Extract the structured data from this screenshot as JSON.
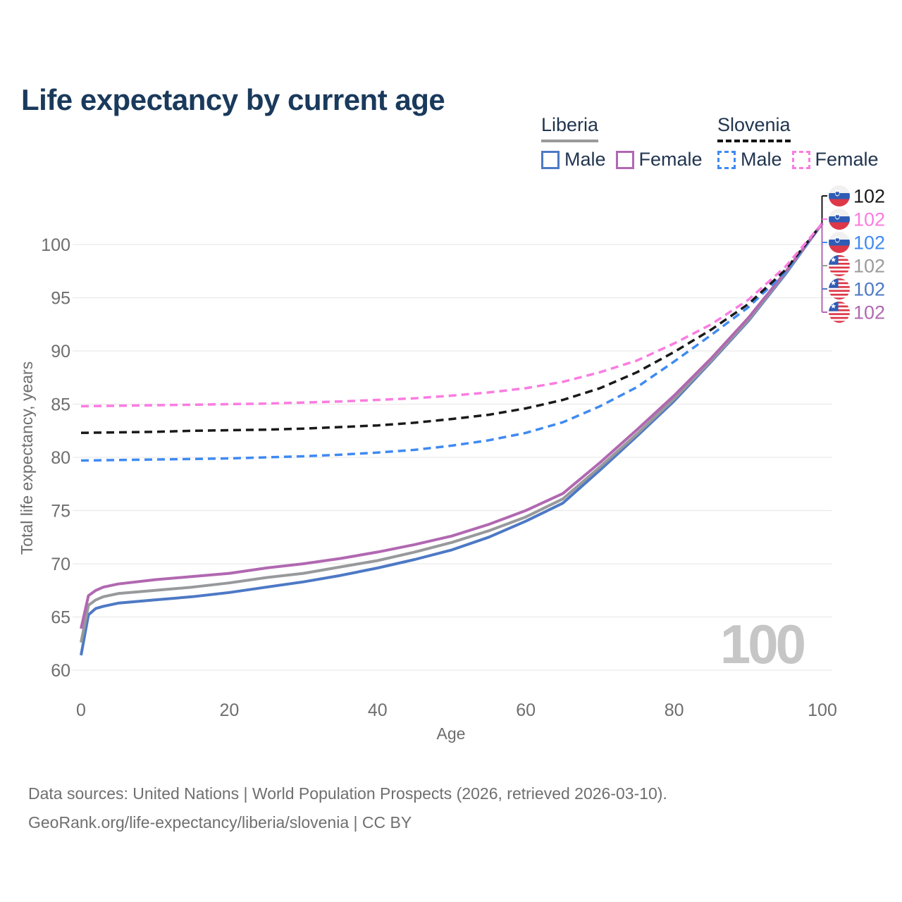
{
  "page": {
    "title": "Life expectancy by current age",
    "footer_line1": "Data sources: United Nations | World Population Prospects (2026, retrieved 2026-03-10).",
    "footer_line2": "GeoRank.org/life-expectancy/liberia/slovenia | CC BY"
  },
  "watermark": "100",
  "legend": {
    "groups": [
      {
        "label": "Liberia",
        "line_style": "solid",
        "underline_color": "#9a9a9a",
        "items": [
          {
            "label": "Male",
            "color": "#4d79c5"
          },
          {
            "label": "Female",
            "color": "#b168b1"
          }
        ]
      },
      {
        "label": "Slovenia",
        "line_style": "dashed",
        "underline_color": "#141414",
        "items": [
          {
            "label": "Male",
            "color": "#3f8af2"
          },
          {
            "label": "Female",
            "color": "#fb7ce1"
          }
        ]
      }
    ]
  },
  "chart_data": {
    "type": "line",
    "title": "Life expectancy by current age",
    "xlabel": "Age",
    "ylabel": "Total life expectancy, years",
    "xticks": [
      0,
      20,
      40,
      60,
      80,
      100
    ],
    "yticks": [
      60,
      65,
      70,
      75,
      80,
      85,
      90,
      95,
      100
    ],
    "xlim": [
      0,
      100
    ],
    "ylim": [
      59,
      103
    ],
    "grid": "horizontal-only",
    "legend_position": "top-right",
    "series": [
      {
        "id": "liberia-male",
        "name": "Liberia Male",
        "color": "#4d79c5",
        "dash": false,
        "points": [
          [
            0,
            61.4
          ],
          [
            1,
            65.2
          ],
          [
            2,
            65.8
          ],
          [
            3,
            66.0
          ],
          [
            5,
            66.3
          ],
          [
            10,
            66.6
          ],
          [
            15,
            66.9
          ],
          [
            20,
            67.3
          ],
          [
            25,
            67.8
          ],
          [
            30,
            68.3
          ],
          [
            35,
            68.9
          ],
          [
            40,
            69.6
          ],
          [
            45,
            70.4
          ],
          [
            50,
            71.3
          ],
          [
            55,
            72.5
          ],
          [
            60,
            74.0
          ],
          [
            65,
            75.7
          ],
          [
            70,
            78.8
          ],
          [
            75,
            82.0
          ],
          [
            80,
            85.3
          ],
          [
            85,
            89.0
          ],
          [
            90,
            92.8
          ],
          [
            95,
            97.2
          ],
          [
            100,
            102
          ]
        ]
      },
      {
        "id": "liberia-total",
        "name": "Liberia",
        "color": "#97999b",
        "dash": false,
        "points": [
          [
            0,
            62.6
          ],
          [
            1,
            66.1
          ],
          [
            2,
            66.6
          ],
          [
            3,
            66.9
          ],
          [
            5,
            67.2
          ],
          [
            10,
            67.5
          ],
          [
            15,
            67.8
          ],
          [
            20,
            68.2
          ],
          [
            25,
            68.7
          ],
          [
            30,
            69.1
          ],
          [
            35,
            69.7
          ],
          [
            40,
            70.3
          ],
          [
            45,
            71.1
          ],
          [
            50,
            72.0
          ],
          [
            55,
            73.1
          ],
          [
            60,
            74.4
          ],
          [
            65,
            76.1
          ],
          [
            70,
            79.1
          ],
          [
            75,
            82.2
          ],
          [
            80,
            85.5
          ],
          [
            85,
            89.1
          ],
          [
            90,
            92.9
          ],
          [
            95,
            97.3
          ],
          [
            100,
            102
          ]
        ]
      },
      {
        "id": "liberia-female",
        "name": "Liberia Female",
        "color": "#b168b1",
        "dash": false,
        "points": [
          [
            0,
            63.9
          ],
          [
            1,
            67.0
          ],
          [
            2,
            67.5
          ],
          [
            3,
            67.8
          ],
          [
            5,
            68.1
          ],
          [
            10,
            68.5
          ],
          [
            15,
            68.8
          ],
          [
            20,
            69.1
          ],
          [
            25,
            69.6
          ],
          [
            30,
            70.0
          ],
          [
            35,
            70.5
          ],
          [
            40,
            71.1
          ],
          [
            45,
            71.8
          ],
          [
            50,
            72.6
          ],
          [
            55,
            73.7
          ],
          [
            60,
            75.0
          ],
          [
            65,
            76.6
          ],
          [
            70,
            79.5
          ],
          [
            75,
            82.6
          ],
          [
            80,
            85.8
          ],
          [
            85,
            89.3
          ],
          [
            90,
            93.1
          ],
          [
            95,
            97.4
          ],
          [
            100,
            102
          ]
        ]
      },
      {
        "id": "slovenia-male",
        "name": "Slovenia Male",
        "color": "#3f8af2",
        "dash": true,
        "points": [
          [
            0,
            79.7
          ],
          [
            5,
            79.75
          ],
          [
            10,
            79.8
          ],
          [
            15,
            79.85
          ],
          [
            20,
            79.9
          ],
          [
            25,
            80.0
          ],
          [
            30,
            80.1
          ],
          [
            35,
            80.25
          ],
          [
            40,
            80.45
          ],
          [
            45,
            80.7
          ],
          [
            50,
            81.1
          ],
          [
            55,
            81.6
          ],
          [
            60,
            82.3
          ],
          [
            65,
            83.3
          ],
          [
            70,
            84.8
          ],
          [
            75,
            86.6
          ],
          [
            80,
            89.0
          ],
          [
            85,
            91.5
          ],
          [
            90,
            94.1
          ],
          [
            95,
            97.4
          ],
          [
            100,
            102
          ]
        ]
      },
      {
        "id": "slovenia-total",
        "name": "Slovenia",
        "color": "#1a1a1a",
        "dash": true,
        "points": [
          [
            0,
            82.3
          ],
          [
            5,
            82.35
          ],
          [
            10,
            82.4
          ],
          [
            15,
            82.5
          ],
          [
            20,
            82.55
          ],
          [
            25,
            82.6
          ],
          [
            30,
            82.7
          ],
          [
            35,
            82.85
          ],
          [
            40,
            83.0
          ],
          [
            45,
            83.25
          ],
          [
            50,
            83.6
          ],
          [
            55,
            84.0
          ],
          [
            60,
            84.6
          ],
          [
            65,
            85.4
          ],
          [
            70,
            86.5
          ],
          [
            75,
            88.0
          ],
          [
            80,
            89.9
          ],
          [
            85,
            92.0
          ],
          [
            90,
            94.4
          ],
          [
            95,
            97.6
          ],
          [
            100,
            102
          ]
        ]
      },
      {
        "id": "slovenia-female",
        "name": "Slovenia Female",
        "color": "#fb7ce1",
        "dash": true,
        "points": [
          [
            0,
            84.8
          ],
          [
            5,
            84.85
          ],
          [
            10,
            84.9
          ],
          [
            15,
            84.95
          ],
          [
            20,
            85.0
          ],
          [
            25,
            85.05
          ],
          [
            30,
            85.15
          ],
          [
            35,
            85.25
          ],
          [
            40,
            85.4
          ],
          [
            45,
            85.55
          ],
          [
            50,
            85.8
          ],
          [
            55,
            86.1
          ],
          [
            60,
            86.5
          ],
          [
            65,
            87.1
          ],
          [
            70,
            88.0
          ],
          [
            75,
            89.1
          ],
          [
            80,
            90.7
          ],
          [
            85,
            92.5
          ],
          [
            90,
            94.8
          ],
          [
            95,
            97.9
          ],
          [
            100,
            102
          ]
        ]
      }
    ],
    "end_labels": [
      {
        "text": "102",
        "color": "#1a1a1a",
        "flag": "slovenia",
        "series": "slovenia-total"
      },
      {
        "text": "102",
        "color": "#fb7ce1",
        "flag": "slovenia",
        "series": "slovenia-female"
      },
      {
        "text": "102",
        "color": "#3f8af2",
        "flag": "slovenia",
        "series": "slovenia-male"
      },
      {
        "text": "102",
        "color": "#9b9b9d",
        "flag": "liberia",
        "series": "liberia-total"
      },
      {
        "text": "102",
        "color": "#4d79c5",
        "flag": "liberia",
        "series": "liberia-male"
      },
      {
        "text": "102",
        "color": "#b168b1",
        "flag": "liberia",
        "series": "liberia-female"
      }
    ]
  }
}
